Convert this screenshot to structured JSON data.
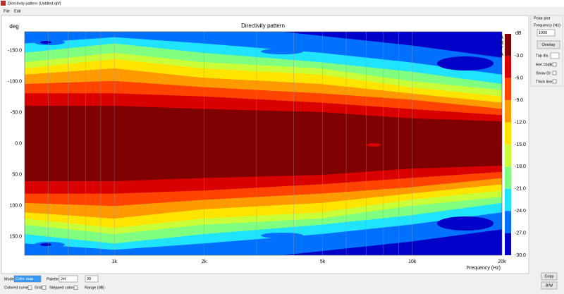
{
  "window": {
    "title": "Directivity pattern (Untitled.dpf)",
    "menu": [
      "File",
      "Edit"
    ]
  },
  "chart_data": {
    "type": "heatmap",
    "title": "Directivity pattern",
    "y_label": "deg",
    "x_label": "Frequency (Hz)",
    "xscale": "log",
    "xlim": [
      500,
      20000
    ],
    "xticks": [
      {
        "value": 1000,
        "label": "1k"
      },
      {
        "value": 2000,
        "label": "2k"
      },
      {
        "value": 5000,
        "label": "5k"
      },
      {
        "value": 10000,
        "label": "10k"
      },
      {
        "value": 20000,
        "label": "20k"
      }
    ],
    "ylim": [
      -180,
      180
    ],
    "yticks": [
      {
        "value": -150,
        "label": "-150.0"
      },
      {
        "value": -100,
        "label": "-100.0"
      },
      {
        "value": -50,
        "label": "-50.0"
      },
      {
        "value": 0,
        "label": "0.0"
      },
      {
        "value": 50,
        "label": "50.0"
      },
      {
        "value": 100,
        "label": "100.0"
      },
      {
        "value": 150,
        "label": "150.0"
      }
    ],
    "grid": true,
    "colorbar": {
      "label": "dB",
      "brand": "ARTA",
      "lim": [
        -30,
        0
      ],
      "ticks": [
        {
          "value": -3,
          "label": "-3.0"
        },
        {
          "value": -6,
          "label": "-6.0"
        },
        {
          "value": -9,
          "label": "-9.0"
        },
        {
          "value": -12,
          "label": "-12.0"
        },
        {
          "value": -15,
          "label": "-15.0"
        },
        {
          "value": -18,
          "label": "-18.0"
        },
        {
          "value": -21,
          "label": "-21.0"
        },
        {
          "value": -24,
          "label": "-24.0"
        },
        {
          "value": -27,
          "label": "-27.0"
        },
        {
          "value": -30,
          "label": "-30.0"
        }
      ],
      "colors": [
        "#7f0000",
        "#d80000",
        "#ff4400",
        "#ff9a00",
        "#ffe400",
        "#c8ff38",
        "#80ff80",
        "#20e4ff",
        "#0070ff",
        "#0000c8"
      ]
    }
  },
  "polar_panel": {
    "title": "Polar plot",
    "frequency_label": "Frequency (Hz)",
    "frequency": "1000",
    "overlay": "Overlay",
    "top_div_label": "Top div.",
    "ref_label": "Ref.=0dB",
    "show_di": "Show DI",
    "thick_line": "Thick line"
  },
  "bottom_bar": {
    "mode_label": "Mode",
    "mode": "Color map",
    "palette_label": "Palette",
    "palette": "Jet",
    "range": "30",
    "colored_curves": "Colored curves",
    "grid": "Grid",
    "stepped_colors": "Stepped colors",
    "range_label": "Range (dB)",
    "copy": "Copy",
    "bw": "B/W"
  }
}
